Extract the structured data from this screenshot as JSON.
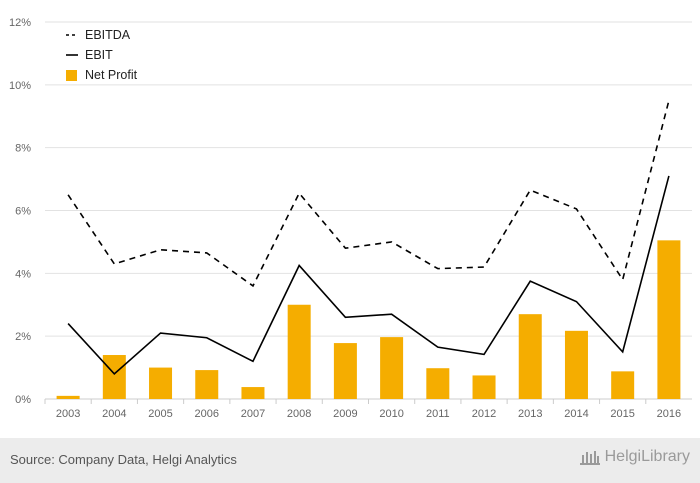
{
  "colors": {
    "bar": "#f5ad00",
    "line": "#000000",
    "grid": "#e2e2e2",
    "axis": "#cccccc",
    "footer_bg": "#ececec"
  },
  "chart_data": {
    "type": "bar",
    "categories": [
      "2003",
      "2004",
      "2005",
      "2006",
      "2007",
      "2008",
      "2009",
      "2010",
      "2011",
      "2012",
      "2013",
      "2014",
      "2015",
      "2016"
    ],
    "ylim": [
      0,
      12
    ],
    "y_ticks": [
      "0%",
      "2%",
      "4%",
      "6%",
      "8%",
      "10%",
      "12%"
    ],
    "y_tick_values": [
      0,
      2,
      4,
      6,
      8,
      10,
      12
    ],
    "grid": true,
    "legend_position": "top-left",
    "series": [
      {
        "name": "EBITDA",
        "type": "line",
        "style": "dashed",
        "values": [
          6.5,
          4.3,
          4.75,
          4.65,
          3.6,
          6.55,
          4.8,
          5.0,
          4.15,
          4.2,
          6.65,
          6.05,
          3.8,
          9.5
        ]
      },
      {
        "name": "EBIT",
        "type": "line",
        "style": "solid",
        "values": [
          2.4,
          0.8,
          2.1,
          1.95,
          1.2,
          4.25,
          2.6,
          2.7,
          1.65,
          1.42,
          3.75,
          3.1,
          1.5,
          7.1
        ]
      },
      {
        "name": "Net Profit",
        "type": "bar",
        "values": [
          0.1,
          1.4,
          1.0,
          0.92,
          0.38,
          3.0,
          1.78,
          1.97,
          0.98,
          0.75,
          2.7,
          2.17,
          0.88,
          5.05
        ]
      }
    ]
  },
  "footer": {
    "source": "Source: Company Data, Helgi Analytics",
    "brand": "HelgiLibrary",
    "logo_icon": "library-building-icon"
  }
}
